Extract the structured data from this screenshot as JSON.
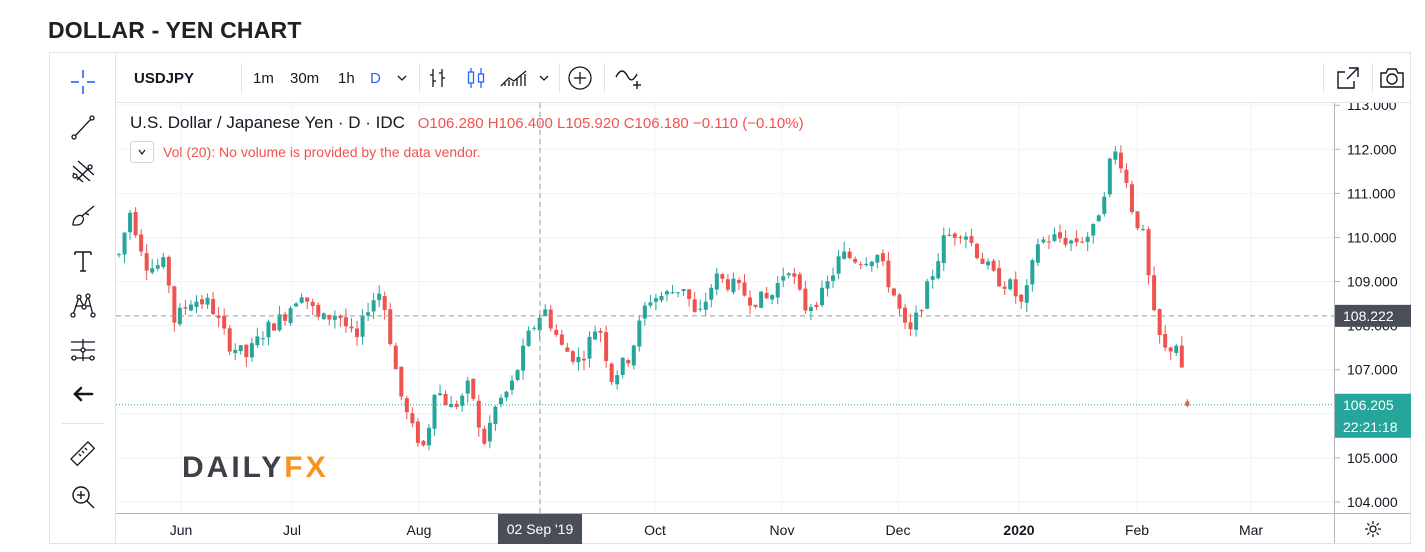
{
  "page": {
    "title": "DOLLAR - YEN CHART"
  },
  "topbar": {
    "symbol": "USDJPY",
    "intervals": [
      "1m",
      "30m",
      "1h",
      "D"
    ],
    "active_interval": "D"
  },
  "legend": {
    "name": "U.S. Dollar / Japanese Yen · D · IDC",
    "ohlc": "O106.280 H106.400 L105.920 C106.180 −0.110 (−0.10%)",
    "volume_note": "Vol (20): No volume is provided by the data vendor."
  },
  "logo": {
    "part1": "DAILY",
    "part2": "FX"
  },
  "colors": {
    "up": "#26a69a",
    "down": "#ef5350",
    "crosshair": "#9598a1",
    "last_price": "#26a69a",
    "marker": "#4a4e58"
  },
  "icons": {
    "left": [
      "crosshair-icon",
      "trendline-icon",
      "pitchfork-icon",
      "brush-icon",
      "text-icon",
      "pattern-icon",
      "prediction-icon",
      "back-arrow-icon",
      "ruler-icon",
      "zoom-in-icon"
    ],
    "top": [
      "chevron-down-icon",
      "bar-chart-icon",
      "candles-icon",
      "indicators-icon",
      "add-compare-icon",
      "alert-icon",
      "fullscreen-icon",
      "camera-icon"
    ]
  },
  "chart_data": {
    "type": "candlestick",
    "title": "DOLLAR - YEN CHART",
    "symbol": "USDJPY",
    "interval": "D",
    "x_ticks": [
      "Jun",
      "Jul",
      "Aug",
      "02 Sep '19",
      "Oct",
      "Nov",
      "Dec",
      "2020",
      "Feb",
      "Mar"
    ],
    "y_ticks": [
      "104.000",
      "105.000",
      "107.000",
      "108.000",
      "109.000",
      "110.000",
      "111.000",
      "112.000",
      "113.000"
    ],
    "ylim": [
      103.75,
      113.05
    ],
    "crosshair": {
      "date": "02 Sep '19",
      "price": "108.222"
    },
    "last_price": {
      "value": "106.205",
      "countdown": "22:21:18"
    },
    "last_bar_ohlc": {
      "open": 106.28,
      "high": 106.4,
      "low": 105.92,
      "close": 106.18,
      "change": -0.11,
      "change_pct": -0.1
    },
    "path": [
      [
        0,
        109.6
      ],
      [
        0.6,
        110.6
      ],
      [
        1.6,
        109.3
      ],
      [
        2.6,
        109.4
      ],
      [
        3.0,
        108.1
      ],
      [
        4.0,
        108.6
      ],
      [
        5.0,
        108.5
      ],
      [
        6.0,
        107.6
      ],
      [
        7.0,
        107.3
      ],
      [
        8.0,
        107.9
      ],
      [
        9.0,
        108.2
      ],
      [
        10.0,
        108.8
      ],
      [
        11.0,
        108.1
      ],
      [
        12.0,
        108.3
      ],
      [
        13.0,
        107.6
      ],
      [
        13.7,
        108.5
      ],
      [
        14.4,
        108.8
      ],
      [
        15.4,
        106.5
      ],
      [
        16.0,
        105.7
      ],
      [
        16.8,
        105.2
      ],
      [
        17.3,
        106.6
      ],
      [
        18.3,
        106.1
      ],
      [
        19.3,
        106.7
      ],
      [
        19.9,
        105.2
      ],
      [
        20.7,
        106.2
      ],
      [
        21.5,
        106.6
      ],
      [
        22.5,
        107.8
      ],
      [
        23.3,
        108.4
      ],
      [
        24.3,
        107.5
      ],
      [
        25.3,
        107.2
      ],
      [
        26.3,
        108.1
      ],
      [
        27.0,
        106.8
      ],
      [
        28.0,
        107.3
      ],
      [
        29.0,
        108.6
      ],
      [
        30.0,
        108.7
      ],
      [
        31.0,
        108.9
      ],
      [
        31.7,
        108.1
      ],
      [
        32.7,
        109.1
      ],
      [
        33.7,
        108.9
      ],
      [
        34.7,
        108.6
      ],
      [
        35.7,
        108.6
      ],
      [
        36.7,
        109.4
      ],
      [
        37.6,
        108.4
      ],
      [
        38.6,
        108.7
      ],
      [
        39.6,
        109.6
      ],
      [
        40.6,
        109.5
      ],
      [
        41.6,
        109.6
      ],
      [
        42.6,
        108.6
      ],
      [
        43.3,
        107.7
      ],
      [
        44.3,
        108.8
      ],
      [
        45.3,
        110.0
      ],
      [
        46.3,
        110.2
      ],
      [
        47.0,
        109.7
      ],
      [
        48.0,
        109.1
      ],
      [
        48.9,
        108.9
      ],
      [
        49.6,
        108.4
      ],
      [
        50.4,
        109.9
      ],
      [
        51.4,
        110.0
      ],
      [
        52.4,
        109.9
      ],
      [
        53.4,
        110.1
      ],
      [
        54.0,
        111.0
      ],
      [
        54.5,
        112.0
      ],
      [
        55.0,
        111.7
      ],
      [
        55.6,
        110.6
      ],
      [
        56.2,
        110.0
      ],
      [
        56.7,
        108.3
      ],
      [
        57.3,
        107.4
      ],
      [
        58.0,
        107.6
      ],
      [
        58.6,
        106.2
      ]
    ],
    "candle_count": 194
  }
}
